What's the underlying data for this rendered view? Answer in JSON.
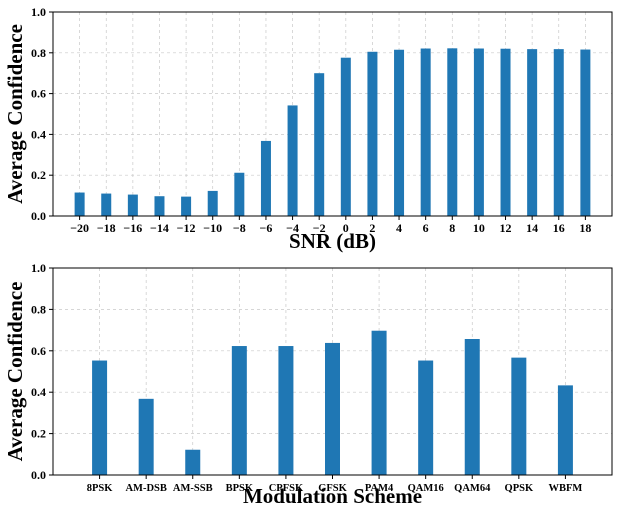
{
  "colors": {
    "bar": "#1f77b4",
    "grid": "#c8c8c8",
    "axis": "#000000"
  },
  "chart_data": [
    {
      "type": "bar",
      "title": "",
      "xlabel": "SNR (dB)",
      "ylabel": "Average Confidence",
      "ylim": [
        0,
        1.0
      ],
      "yticks": [
        "0.0",
        "0.2",
        "0.4",
        "0.6",
        "0.8",
        "1.0"
      ],
      "grid": true,
      "categories": [
        "−20",
        "−18",
        "−16",
        "−14",
        "−12",
        "−10",
        "−8",
        "−6",
        "−4",
        "−2",
        "0",
        "2",
        "4",
        "6",
        "8",
        "10",
        "12",
        "14",
        "16",
        "18"
      ],
      "values": [
        0.115,
        0.11,
        0.105,
        0.097,
        0.095,
        0.123,
        0.212,
        0.368,
        0.542,
        0.7,
        0.776,
        0.805,
        0.815,
        0.821,
        0.822,
        0.821,
        0.82,
        0.818,
        0.818,
        0.816
      ]
    },
    {
      "type": "bar",
      "title": "",
      "xlabel": "Modulation Scheme",
      "ylabel": "Average Confidence",
      "ylim": [
        0,
        1.0
      ],
      "yticks": [
        "0.0",
        "0.2",
        "0.4",
        "0.6",
        "0.8",
        "1.0"
      ],
      "grid": true,
      "categories": [
        "8PSK",
        "AM-DSB",
        "AM-SSB",
        "BPSK",
        "CPFSK",
        "GFSK",
        "PAM4",
        "QAM16",
        "QAM64",
        "QPSK",
        "WBFM"
      ],
      "values": [
        0.553,
        0.368,
        0.122,
        0.623,
        0.623,
        0.638,
        0.697,
        0.553,
        0.657,
        0.567,
        0.433
      ]
    }
  ]
}
